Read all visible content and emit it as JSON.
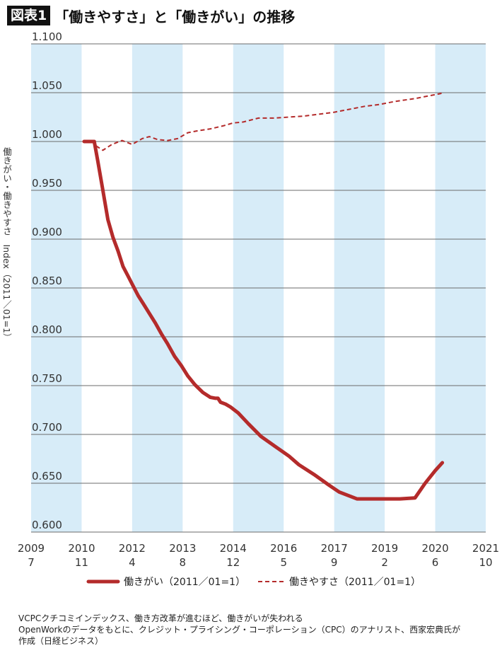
{
  "figure": {
    "badge": "図表1",
    "title": "「働きやすさ」と「働きがい」の推移"
  },
  "caption": {
    "line1": "VCPCクチコミインデックス、働き方改革が進むほど、働きがいが失われる",
    "line2": "OpenWorkのデータをもとに、クレジット・プライシング・コーポレーション（CPC）のアナリスト、西家宏典氏が",
    "line3": "作成（日経ビジネス）"
  },
  "colors": {
    "band": "#d7ecf8",
    "gridline": "#6b6b6b",
    "series_red": "#b42b2b"
  },
  "chart_data": {
    "type": "line",
    "title": "「働きやすさ」と「働きがい」の推移",
    "ylabel": "働きがい・働きやすさ　Index（2011／01=1）",
    "xlabel": "",
    "ylim": [
      0.6,
      1.1
    ],
    "yticks": [
      "1.100",
      "1.050",
      "1.000",
      "0.950",
      "0.900",
      "0.850",
      "0.800",
      "0.750",
      "0.700",
      "0.650",
      "0.600"
    ],
    "xticks": [
      {
        "year": "2009",
        "month": "7"
      },
      {
        "year": "2010",
        "month": "11"
      },
      {
        "year": "2012",
        "month": "4"
      },
      {
        "year": "2013",
        "month": "8"
      },
      {
        "year": "2014",
        "month": "12"
      },
      {
        "year": "2016",
        "month": "5"
      },
      {
        "year": "2017",
        "month": "9"
      },
      {
        "year": "2019",
        "month": "2"
      },
      {
        "year": "2020",
        "month": "6"
      },
      {
        "year": "2021",
        "month": "10"
      }
    ],
    "xlim": [
      0,
      9
    ],
    "shaded_bands": [
      [
        0,
        1
      ],
      [
        2,
        3
      ],
      [
        4,
        5
      ],
      [
        6,
        7
      ],
      [
        8,
        9
      ]
    ],
    "grid": true,
    "legend_position": "bottom",
    "series": [
      {
        "name": "働きがい（2011／01=1）",
        "style": "solid",
        "color": "#b42b2b",
        "points": [
          [
            1.05,
            1.0
          ],
          [
            1.25,
            1.0
          ],
          [
            1.32,
            0.98
          ],
          [
            1.42,
            0.95
          ],
          [
            1.52,
            0.92
          ],
          [
            1.62,
            0.902
          ],
          [
            1.72,
            0.888
          ],
          [
            1.82,
            0.872
          ],
          [
            1.92,
            0.862
          ],
          [
            2.02,
            0.852
          ],
          [
            2.12,
            0.842
          ],
          [
            2.22,
            0.834
          ],
          [
            2.34,
            0.824
          ],
          [
            2.46,
            0.814
          ],
          [
            2.58,
            0.803
          ],
          [
            2.7,
            0.793
          ],
          [
            2.84,
            0.78
          ],
          [
            2.98,
            0.77
          ],
          [
            3.1,
            0.76
          ],
          [
            3.24,
            0.751
          ],
          [
            3.4,
            0.743
          ],
          [
            3.55,
            0.738
          ],
          [
            3.65,
            0.737
          ],
          [
            3.7,
            0.737
          ],
          [
            3.75,
            0.733
          ],
          [
            3.85,
            0.731
          ],
          [
            3.95,
            0.728
          ],
          [
            4.1,
            0.722
          ],
          [
            4.3,
            0.711
          ],
          [
            4.55,
            0.698
          ],
          [
            4.85,
            0.687
          ],
          [
            5.1,
            0.678
          ],
          [
            5.3,
            0.669
          ],
          [
            5.6,
            0.659
          ],
          [
            5.9,
            0.648
          ],
          [
            6.1,
            0.641
          ],
          [
            6.3,
            0.637
          ],
          [
            6.45,
            0.634
          ],
          [
            6.7,
            0.634
          ],
          [
            7.0,
            0.634
          ],
          [
            7.3,
            0.634
          ],
          [
            7.6,
            0.635
          ],
          [
            7.8,
            0.65
          ],
          [
            8.0,
            0.663
          ],
          [
            8.14,
            0.671
          ]
        ]
      },
      {
        "name": "働きやすさ（2011／01=1）",
        "style": "dashed",
        "color": "#b42b2b",
        "points": [
          [
            1.05,
            1.0
          ],
          [
            1.22,
            1.0
          ],
          [
            1.3,
            0.995
          ],
          [
            1.42,
            0.991
          ],
          [
            1.6,
            0.997
          ],
          [
            1.8,
            1.001
          ],
          [
            2.0,
            0.997
          ],
          [
            2.2,
            1.003
          ],
          [
            2.34,
            1.005
          ],
          [
            2.5,
            1.002
          ],
          [
            2.7,
            1.001
          ],
          [
            2.9,
            1.003
          ],
          [
            3.1,
            1.009
          ],
          [
            3.3,
            1.011
          ],
          [
            3.55,
            1.013
          ],
          [
            3.8,
            1.016
          ],
          [
            4.0,
            1.019
          ],
          [
            4.2,
            1.02
          ],
          [
            4.5,
            1.024
          ],
          [
            4.8,
            1.024
          ],
          [
            5.1,
            1.025
          ],
          [
            5.4,
            1.026
          ],
          [
            5.7,
            1.028
          ],
          [
            6.0,
            1.03
          ],
          [
            6.3,
            1.033
          ],
          [
            6.6,
            1.036
          ],
          [
            6.9,
            1.038
          ],
          [
            7.2,
            1.041
          ],
          [
            7.6,
            1.044
          ],
          [
            7.9,
            1.047
          ],
          [
            8.1,
            1.049
          ],
          [
            8.14,
            1.05
          ]
        ]
      }
    ]
  }
}
